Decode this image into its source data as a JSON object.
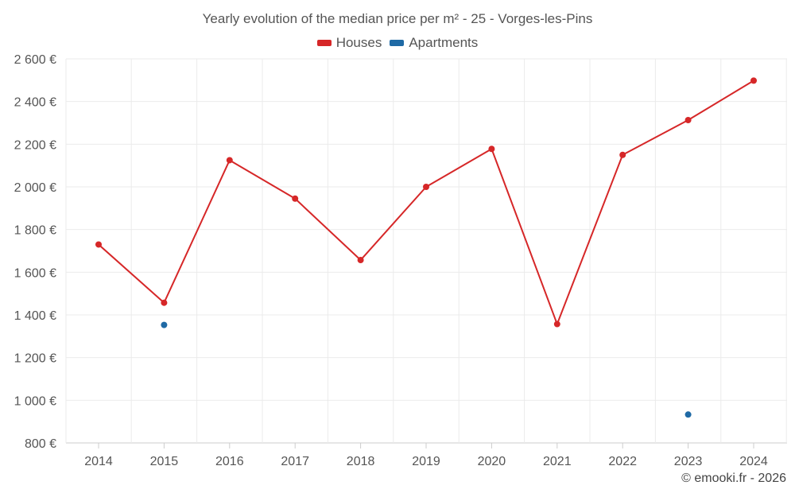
{
  "chart_data": {
    "type": "line",
    "title": "Yearly evolution of the median price per m² - 25 - Vorges-les-Pins",
    "categories": [
      "2014",
      "2015",
      "2016",
      "2017",
      "2018",
      "2019",
      "2020",
      "2021",
      "2022",
      "2023",
      "2024"
    ],
    "series": [
      {
        "name": "Houses",
        "color": "#d62728",
        "values": [
          1730,
          1457,
          2125,
          1945,
          1657,
          2000,
          2178,
          1357,
          2150,
          2313,
          2498
        ],
        "connected": true
      },
      {
        "name": "Apartments",
        "color": "#1f6aa5",
        "values": [
          null,
          1353,
          null,
          null,
          null,
          null,
          null,
          null,
          null,
          933,
          null
        ],
        "connected": false
      }
    ],
    "ylim": [
      800,
      2600
    ],
    "yticks": [
      800,
      1000,
      1200,
      1400,
      1600,
      1800,
      2000,
      2200,
      2400,
      2600
    ],
    "ytick_labels": [
      "800 €",
      "1 000 €",
      "1 200 €",
      "1 400 €",
      "1 600 €",
      "1 800 €",
      "2 000 €",
      "2 200 €",
      "2 400 €",
      "2 600 €"
    ],
    "xlabel": "",
    "ylabel": "",
    "grid": true,
    "legend_position": "top-center"
  },
  "credit": "© emooki.fr - 2026"
}
